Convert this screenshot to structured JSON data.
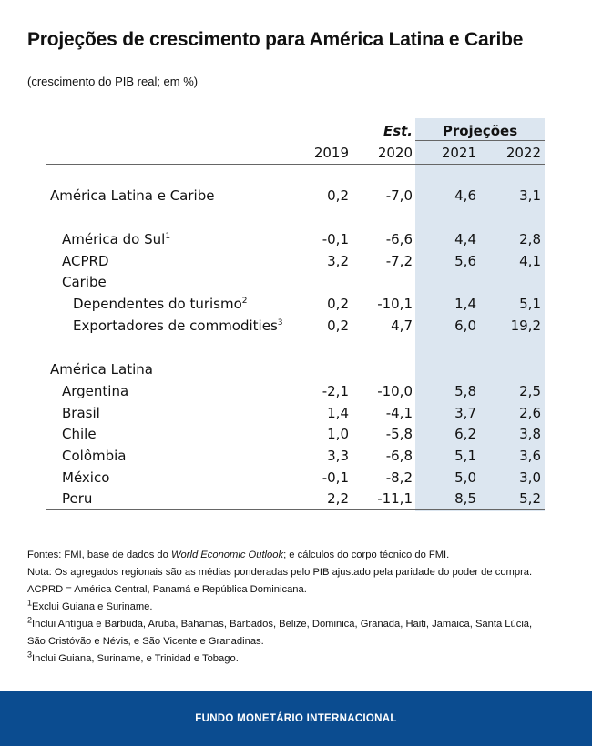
{
  "title": "Projeções de crescimento para América Latina e Caribe",
  "subtitle": "(crescimento do PIB real; em %)",
  "table": {
    "est_label": "Est.",
    "projections_label": "Projeções",
    "years": [
      "2019",
      "2020",
      "2021",
      "2022"
    ],
    "rows": [
      {
        "label": "América Latina e Caribe",
        "sup": "",
        "values": [
          "0,2",
          "-7,0",
          "4,6",
          "3,1"
        ]
      },
      {
        "label": "América do Sul",
        "sup": "1",
        "values": [
          "-0,1",
          "-6,6",
          "4,4",
          "2,8"
        ]
      },
      {
        "label": "ACPRD",
        "sup": "",
        "values": [
          "3,2",
          "-7,2",
          "5,6",
          "4,1"
        ]
      },
      {
        "label": "Caribe",
        "sup": "",
        "values": [
          "",
          "",
          "",
          ""
        ]
      },
      {
        "label": "Dependentes do turismo",
        "sup": "2",
        "values": [
          "0,2",
          "-10,1",
          "1,4",
          "5,1"
        ]
      },
      {
        "label": "Exportadores de commodities",
        "sup": "3",
        "values": [
          "0,2",
          "4,7",
          "6,0",
          "19,2"
        ]
      },
      {
        "label": "América Latina",
        "sup": "",
        "values": [
          "",
          "",
          "",
          ""
        ]
      },
      {
        "label": "Argentina",
        "sup": "",
        "values": [
          "-2,1",
          "-10,0",
          "5,8",
          "2,5"
        ]
      },
      {
        "label": "Brasil",
        "sup": "",
        "values": [
          "1,4",
          "-4,1",
          "3,7",
          "2,6"
        ]
      },
      {
        "label": "Chile",
        "sup": "",
        "values": [
          "1,0",
          "-5,8",
          "6,2",
          "3,8"
        ]
      },
      {
        "label": "Colômbia",
        "sup": "",
        "values": [
          "3,3",
          "-6,8",
          "5,1",
          "3,6"
        ]
      },
      {
        "label": "México",
        "sup": "",
        "values": [
          "-0,1",
          "-8,2",
          "5,0",
          "3,0"
        ]
      },
      {
        "label": "Peru",
        "sup": "",
        "values": [
          "2,2",
          "-11,1",
          "8,5",
          "5,2"
        ]
      }
    ]
  },
  "notes": {
    "sources_prefix": "Fontes: FMI, base de dados do ",
    "sources_italic": "World Economic Outlook",
    "sources_suffix": "; e cálculos do corpo técnico do FMI.",
    "note": "Nota: Os agregados regionais são as médias ponderadas pelo PIB ajustado pela paridade do poder de compra.",
    "acprd": "ACPRD = América Central, Panamá e República Dominicana.",
    "fn1_mark": "1",
    "fn1": "Exclui Guiana e Suriname.",
    "fn2_mark": "2",
    "fn2_line1": "Inclui Antígua e Barbuda, Aruba, Bahamas, Barbados, Belize, Dominica, Granada, Haiti, Jamaica, Santa Lúcia,",
    "fn2_line2": "São Cristóvão e Névis, e São Vicente e Granadinas.",
    "fn3_mark": "3",
    "fn3": "Inclui Guiana, Suriname, e Trinidad e Tobago."
  },
  "footer": "FUNDO MONETÁRIO INTERNACIONAL",
  "colors": {
    "shade": "#dce6f0",
    "footer": "#0b4c90"
  }
}
